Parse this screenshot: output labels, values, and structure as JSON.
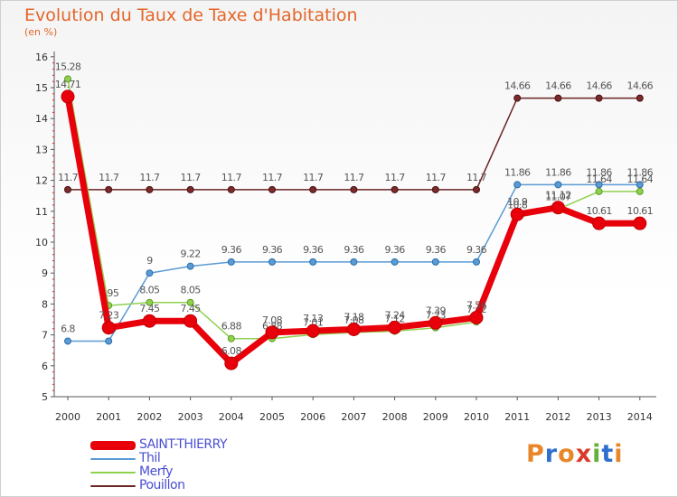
{
  "chart_data": {
    "type": "line",
    "title": "Evolution du Taux de Taxe d'Habitation",
    "subtitle": "(en %)",
    "categories": [
      "2000",
      "2001",
      "2002",
      "2003",
      "2004",
      "2005",
      "2006",
      "2007",
      "2008",
      "2009",
      "2010",
      "2011",
      "2012",
      "2013",
      "2014"
    ],
    "y_ticks": [
      "5",
      "6",
      "7",
      "8",
      "9",
      "10",
      "11",
      "12",
      "13",
      "14",
      "15",
      "16"
    ],
    "ylim": [
      5,
      16
    ],
    "grid": false,
    "series": [
      {
        "name": "Pouillon",
        "color": "#6b2424",
        "values": [
          11.7,
          11.7,
          11.7,
          11.7,
          11.7,
          11.7,
          11.7,
          11.7,
          11.7,
          11.7,
          11.7,
          14.66,
          14.66,
          14.66,
          14.66
        ],
        "labels": [
          "11.7",
          "11.7",
          "11.7",
          "11.7",
          "11.7",
          "11.7",
          "11.7",
          "11.7",
          "11.7",
          "11.7",
          "11.7",
          "14.66",
          "14.66",
          "14.66",
          "14.66"
        ]
      },
      {
        "name": "Thil",
        "color": "#5b9bd5",
        "values": [
          6.8,
          6.8,
          9,
          9.22,
          9.36,
          9.36,
          9.36,
          9.36,
          9.36,
          9.36,
          9.36,
          11.86,
          11.86,
          11.86,
          11.86
        ],
        "labels": [
          "6.8",
          "6.8",
          "9",
          "9.22",
          "9.36",
          "9.36",
          "9.36",
          "9.36",
          "9.36",
          "9.36",
          "9.36",
          "11.86",
          "11.86",
          "11.86",
          "11.86"
        ]
      },
      {
        "name": "Merfy",
        "color": "#8fd14f",
        "values": [
          15.28,
          7.95,
          8.05,
          8.05,
          6.88,
          6.88,
          7.01,
          7.08,
          7.12,
          7.23,
          7.42,
          10.8,
          11.07,
          11.64,
          11.64
        ],
        "labels": [
          "15.28",
          "7.95",
          "8.05",
          "8.05",
          "6.88",
          "6.88",
          "7.01",
          "7.08",
          "7.12",
          "7.23",
          "7.42",
          "10.8",
          "11.07",
          "11.64",
          "11.64"
        ]
      },
      {
        "name": "SAINT-THIERRY",
        "color": "#e8000b",
        "values": [
          14.71,
          7.23,
          7.45,
          7.45,
          6.08,
          7.08,
          7.13,
          7.18,
          7.24,
          7.39,
          7.56,
          10.9,
          11.12,
          10.61,
          10.61
        ],
        "labels": [
          "14.71",
          "7.23",
          "7.45",
          "7.45",
          "6.08",
          "7.08",
          "7.13",
          "7.18",
          "7.24",
          "7.39",
          "7.56",
          "10.9",
          "11.12",
          "10.61",
          "10.61"
        ]
      }
    ],
    "legend": [
      "SAINT-THIERRY",
      "Thil",
      "Merfy",
      "Pouillon"
    ]
  },
  "logo": {
    "letters": [
      "P",
      "r",
      "o",
      "x",
      "i",
      "t",
      "i"
    ],
    "colors": [
      "#e8872a",
      "#2f6fce",
      "#e8872a",
      "#d93a2a",
      "#62b13a",
      "#2f6fce",
      "#e8872a"
    ]
  }
}
